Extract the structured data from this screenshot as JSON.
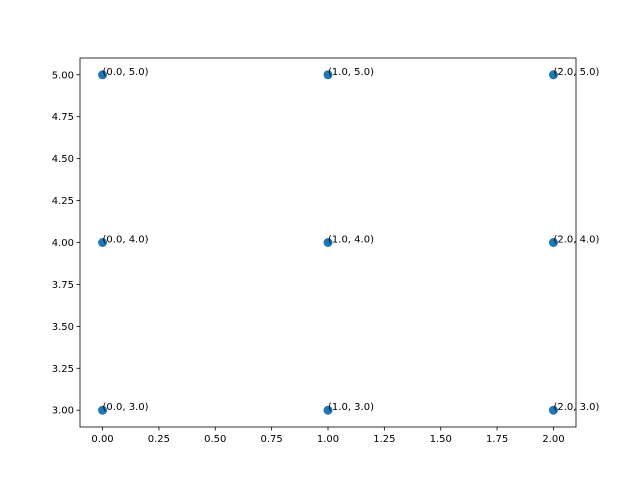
{
  "chart_data": {
    "type": "scatter",
    "title": "",
    "xlabel": "",
    "ylabel": "",
    "xlim": [
      -0.1,
      2.1
    ],
    "ylim": [
      2.9,
      5.1
    ],
    "grid": false,
    "legend": "none",
    "x_ticks": [
      "0.00",
      "0.25",
      "0.50",
      "0.75",
      "1.00",
      "1.25",
      "1.50",
      "1.75",
      "2.00"
    ],
    "y_ticks": [
      "3.00",
      "3.25",
      "3.50",
      "3.75",
      "4.00",
      "4.25",
      "4.50",
      "4.75",
      "5.00"
    ],
    "marker_color": "#1f77b4",
    "points": [
      {
        "x": 0.0,
        "y": 3.0,
        "label": "(0.0, 3.0)"
      },
      {
        "x": 0.0,
        "y": 4.0,
        "label": "(0.0, 4.0)"
      },
      {
        "x": 0.0,
        "y": 5.0,
        "label": "(0.0, 5.0)"
      },
      {
        "x": 1.0,
        "y": 3.0,
        "label": "(1.0, 3.0)"
      },
      {
        "x": 1.0,
        "y": 4.0,
        "label": "(1.0, 4.0)"
      },
      {
        "x": 1.0,
        "y": 5.0,
        "label": "(1.0, 5.0)"
      },
      {
        "x": 2.0,
        "y": 3.0,
        "label": "(2.0, 3.0)"
      },
      {
        "x": 2.0,
        "y": 4.0,
        "label": "(2.0, 4.0)"
      },
      {
        "x": 2.0,
        "y": 5.0,
        "label": "(2.0, 5.0)"
      }
    ]
  }
}
